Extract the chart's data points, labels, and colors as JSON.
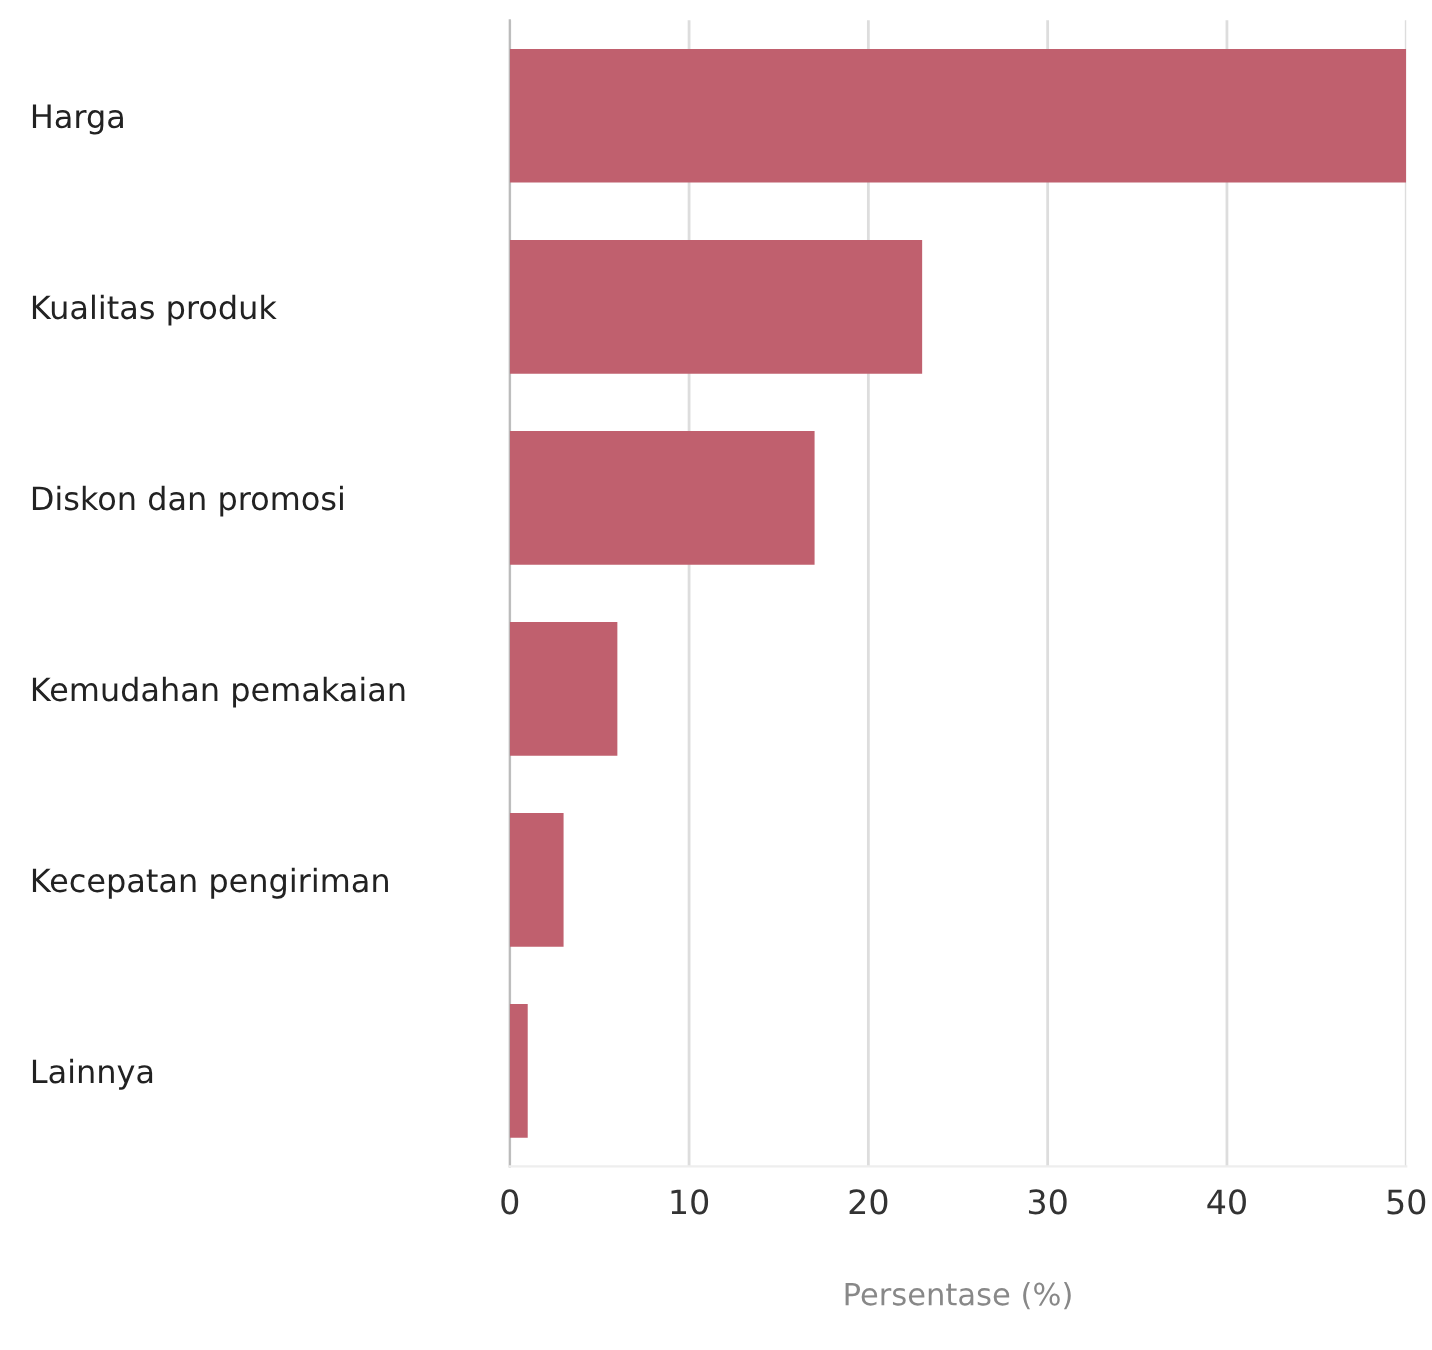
{
  "chart_data": {
    "type": "bar",
    "orientation": "horizontal",
    "xlabel": "Persentase (%)",
    "categories": [
      "Harga",
      "Kualitas produk",
      "Diskon dan promosi",
      "Kemudahan pemakaian",
      "Kecepatan pengiriman",
      "Lainnya"
    ],
    "values": [
      50,
      23,
      17,
      6,
      3,
      1
    ],
    "color": "#c0606e",
    "xlim": [
      0,
      50
    ],
    "xticks": [
      0,
      10,
      20,
      30,
      40,
      50
    ],
    "grid": "x"
  }
}
